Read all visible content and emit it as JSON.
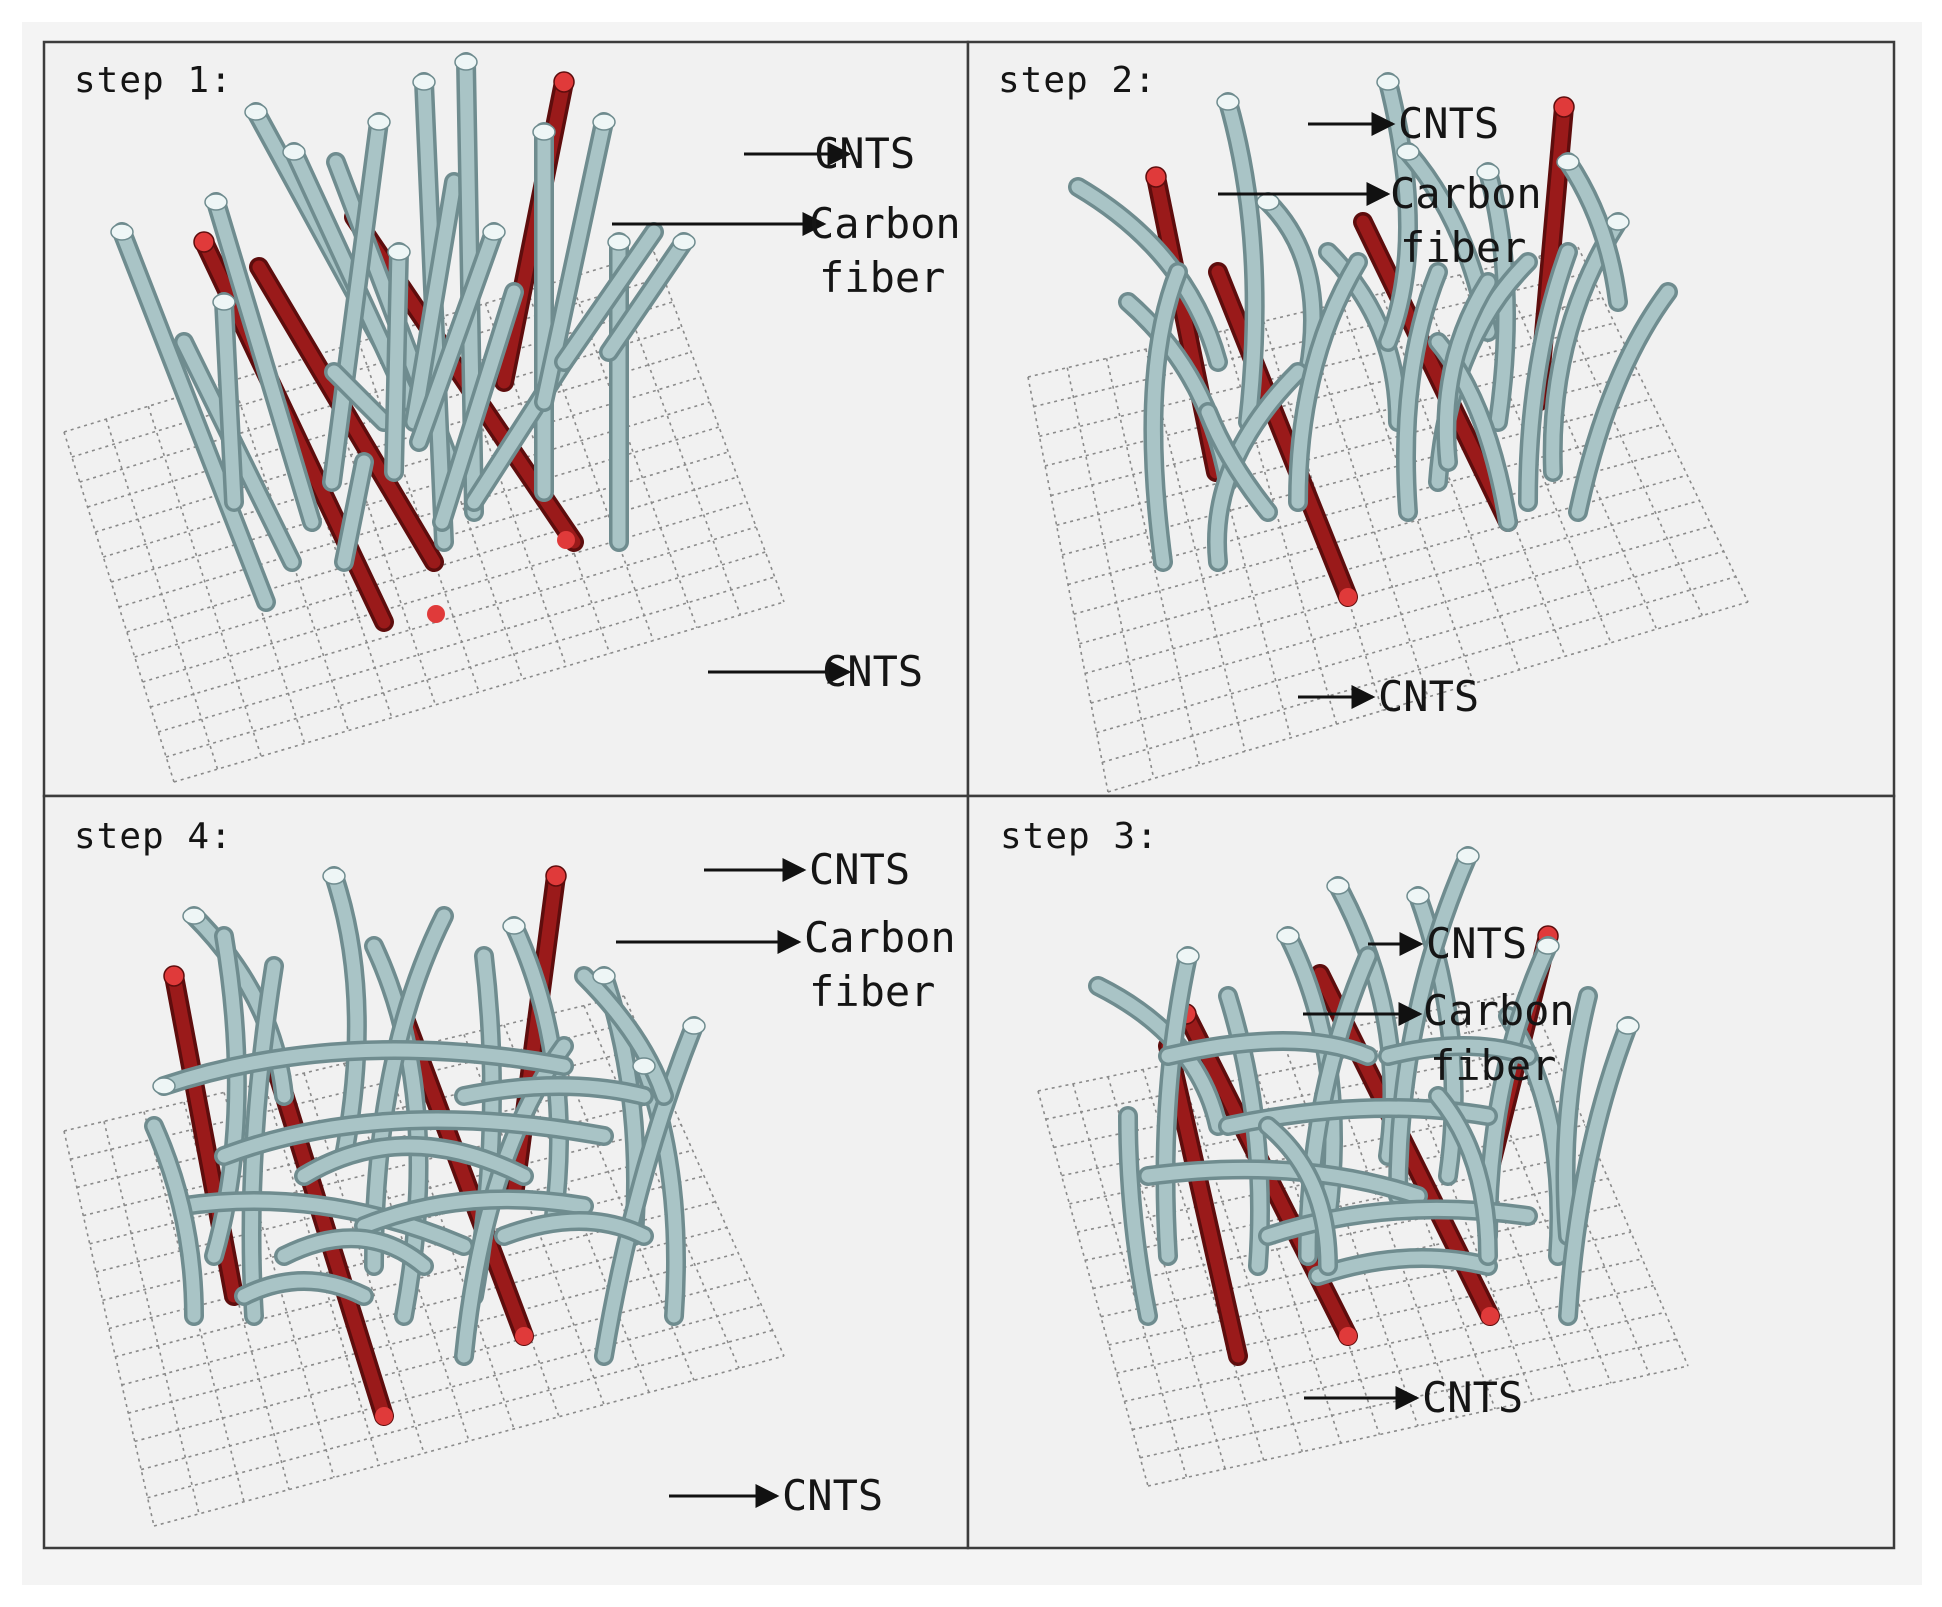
{
  "colors": {
    "background": "#ffffff",
    "panel_fill": "#f1f1f1",
    "border": "#3c3c3c",
    "grid": "#8a8a8a",
    "carbon_fiber": "#a9c4c6",
    "carbon_fiber_shade": "#6f8c8f",
    "cnts": "#9a1a1a",
    "cnts_tip": "#e03a3a",
    "arrow": "#111111"
  },
  "panels": [
    {
      "id": "step1",
      "title": "step 1:",
      "labels": {
        "cnts_top": "CNTS",
        "carbon_fiber_line1": "Carbon",
        "carbon_fiber_line2": "fiber",
        "cnts_bottom": "CNTS"
      },
      "icon": "vertical-fiber-array"
    },
    {
      "id": "step2",
      "title": "step 2:",
      "labels": {
        "cnts_top": "CNTS",
        "carbon_fiber_line1": "Carbon",
        "carbon_fiber_line2": "fiber",
        "cnts_bottom": "CNTS"
      },
      "icon": "bending-fiber-array"
    },
    {
      "id": "step4",
      "title": "step 4:",
      "labels": {
        "cnts_top": "CNTS",
        "carbon_fiber_line1": "Carbon",
        "carbon_fiber_line2": "fiber",
        "cnts_bottom": "CNTS"
      },
      "icon": "woven-fiber-network"
    },
    {
      "id": "step3",
      "title": "step 3:",
      "labels": {
        "cnts_top": "CNTS",
        "carbon_fiber_line1": "Carbon",
        "carbon_fiber_line2": "fiber",
        "cnts_bottom": "CNTS"
      },
      "icon": "interlacing-fiber-network"
    }
  ]
}
